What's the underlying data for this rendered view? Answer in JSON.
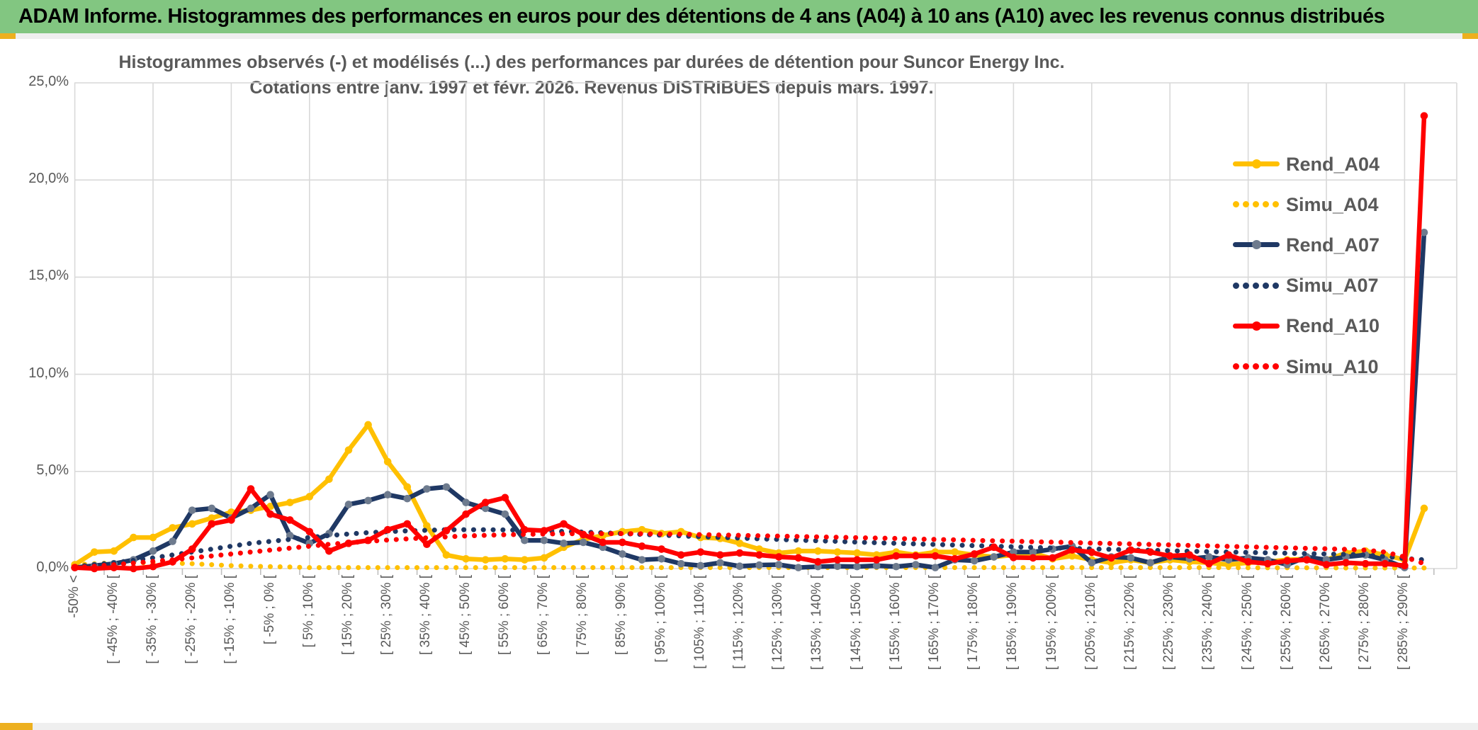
{
  "header": {
    "title": "ADAM Informe. Histogrammes des performances en euros pour des détentions de 4 ans (A04) à 10 ans (A10) avec les revenus connus distribués",
    "bg_color": "#82C681",
    "accent_color": "#EDB01F",
    "text_color": "#000000"
  },
  "chart_data": {
    "type": "line",
    "title": "Histogrammes observés (-) et modélisés (...) des performances par durées de détention pour Suncor Energy Inc.",
    "subtitle": "Cotations entre janv. 1997 et févr. 2026. Revenus DISTRIBUES depuis mars. 1997.",
    "grid": true,
    "legend_position": "right-inside",
    "text_color": "#595959",
    "gridline_color": "#D9D9D9",
    "y_axis": {
      "unit": "percent",
      "min": 0,
      "max": 25,
      "tick_step": 5,
      "ticks": [
        "0,0%",
        "5,0%",
        "10,0%",
        "15,0%",
        "20,0%",
        "25,0%"
      ]
    },
    "x_axis": {
      "bin_count": 70,
      "bin_width_pct": 5,
      "note_labels_every_2nd_bin": true,
      "labels": [
        "-50% <",
        "[ -45% ; -40% [",
        "[ -35% ; -30% [",
        "[ -25% ; -20% [",
        "[ -15% ; -10% [",
        "[ -5% ; 0% [",
        "[ 5% ; 10% [",
        "[ 15% ; 20% [",
        "[ 25% ; 30% [",
        "[ 35% ; 40% [",
        "[ 45% ; 50% [",
        "[ 55% ; 60% [",
        "[ 65% ; 70% [",
        "[ 75% ; 80% [",
        "[ 85% ; 90% [",
        "[ 95% ; 100% [",
        "[ 105% ; 110% [",
        "[ 115% ; 120% [",
        "[ 125% ; 130% [",
        "[ 135% ; 140% [",
        "[ 145% ; 150% [",
        "[ 155% ; 160% [",
        "[ 165% ; 170% [",
        "[ 175% ; 180% [",
        "[ 185% ; 190% [",
        "[ 195% ; 200% [",
        "[ 205% ; 210% [",
        "[ 215% ; 220% [",
        "[ 225% ; 230% [",
        "[ 235% ; 240% [",
        "[ 245% ; 250% [",
        "[ 255% ; 260% [",
        "[ 265% ; 270% [",
        "[ 275% ; 280% [",
        "[ 285% ; 290% ["
      ]
    },
    "series": [
      {
        "name": "Rend_A04",
        "style": "solid",
        "color": "#FFC000",
        "marker": "#FFC000",
        "values": [
          0.2,
          0.85,
          0.9,
          1.6,
          1.6,
          2.1,
          2.3,
          2.6,
          2.9,
          3.0,
          3.2,
          3.4,
          3.7,
          4.6,
          6.1,
          7.4,
          5.5,
          4.2,
          2.2,
          0.7,
          0.5,
          0.45,
          0.5,
          0.45,
          0.55,
          1.1,
          1.5,
          1.7,
          1.9,
          2.0,
          1.8,
          1.9,
          1.6,
          1.55,
          1.3,
          1.0,
          0.8,
          0.9,
          0.9,
          0.85,
          0.8,
          0.7,
          0.85,
          0.7,
          0.85,
          0.85,
          0.7,
          0.6,
          0.7,
          0.8,
          0.5,
          0.65,
          0.45,
          0.3,
          0.45,
          0.3,
          0.45,
          0.35,
          0.3,
          0.2,
          0.3,
          0.35,
          0.45,
          0.5,
          0.45,
          0.8,
          0.9,
          0.7,
          0.45,
          3.1
        ]
      },
      {
        "name": "Simu_A04",
        "style": "dotted",
        "color": "#FFC000",
        "values": [
          0.2,
          0.25,
          0.3,
          0.3,
          0.3,
          0.28,
          0.25,
          0.2,
          0.15,
          0.12,
          0.1,
          0.08,
          0.05,
          0.05,
          0.05,
          0.05,
          0.05,
          0.05,
          0.05,
          0.05,
          0.05,
          0.05,
          0.05,
          0.05,
          0.05,
          0.05,
          0.05,
          0.05,
          0.05,
          0.05,
          0.05,
          0.05,
          0.05,
          0.05,
          0.05,
          0.05,
          0.05,
          0.05,
          0.05,
          0.05,
          0.05,
          0.05,
          0.05,
          0.05,
          0.05,
          0.05,
          0.05,
          0.05,
          0.05,
          0.05,
          0.05,
          0.05,
          0.05,
          0.05,
          0.05,
          0.05,
          0.05,
          0.05,
          0.05,
          0.05,
          0.04,
          0.04,
          0.04,
          0.04,
          0.04,
          0.03,
          0.03,
          0.03,
          0.03,
          0.03
        ]
      },
      {
        "name": "Rend_A07",
        "style": "solid",
        "color": "#1F3864",
        "marker": "#6E7B8E",
        "values": [
          0.05,
          0.15,
          0.25,
          0.45,
          0.9,
          1.4,
          3.0,
          3.1,
          2.6,
          3.1,
          3.8,
          1.7,
          1.3,
          1.8,
          3.3,
          3.5,
          3.8,
          3.6,
          4.1,
          4.2,
          3.4,
          3.1,
          2.8,
          1.45,
          1.45,
          1.3,
          1.35,
          1.1,
          0.75,
          0.45,
          0.5,
          0.25,
          0.15,
          0.3,
          0.12,
          0.18,
          0.2,
          0.05,
          0.1,
          0.12,
          0.1,
          0.15,
          0.1,
          0.2,
          0.05,
          0.45,
          0.4,
          0.6,
          0.85,
          0.85,
          1.0,
          1.15,
          0.3,
          0.6,
          0.55,
          0.3,
          0.6,
          0.5,
          0.6,
          0.45,
          0.55,
          0.45,
          0.2,
          0.6,
          0.45,
          0.6,
          0.7,
          0.45,
          0.05,
          17.3
        ]
      },
      {
        "name": "Simu_A07",
        "style": "dotted",
        "color": "#1F3864",
        "values": [
          0.1,
          0.2,
          0.3,
          0.42,
          0.55,
          0.7,
          0.85,
          1.0,
          1.15,
          1.3,
          1.4,
          1.5,
          1.6,
          1.7,
          1.78,
          1.85,
          1.9,
          1.94,
          1.97,
          2.0,
          2.0,
          2.0,
          1.99,
          1.97,
          1.94,
          1.91,
          1.88,
          1.84,
          1.8,
          1.76,
          1.72,
          1.68,
          1.64,
          1.6,
          1.57,
          1.53,
          1.5,
          1.46,
          1.43,
          1.4,
          1.36,
          1.33,
          1.3,
          1.27,
          1.24,
          1.21,
          1.18,
          1.15,
          1.12,
          1.09,
          1.06,
          1.04,
          1.01,
          0.99,
          0.96,
          0.94,
          0.92,
          0.89,
          0.87,
          0.85,
          0.83,
          0.81,
          0.79,
          0.77,
          0.75,
          0.73,
          0.7,
          0.62,
          0.52,
          0.45
        ]
      },
      {
        "name": "Rend_A10",
        "style": "solid",
        "color": "#FF0000",
        "marker": "#FF0000",
        "values": [
          0.05,
          0.0,
          0.05,
          0.0,
          0.1,
          0.35,
          1.0,
          2.3,
          2.5,
          4.1,
          2.8,
          2.5,
          1.9,
          0.9,
          1.3,
          1.45,
          2.0,
          2.3,
          1.25,
          1.95,
          2.8,
          3.4,
          3.65,
          2.0,
          1.95,
          2.3,
          1.75,
          1.35,
          1.35,
          1.15,
          1.0,
          0.7,
          0.85,
          0.7,
          0.8,
          0.7,
          0.6,
          0.55,
          0.35,
          0.45,
          0.45,
          0.45,
          0.65,
          0.65,
          0.65,
          0.5,
          0.75,
          1.1,
          0.57,
          0.55,
          0.55,
          0.96,
          0.84,
          0.55,
          0.95,
          0.85,
          0.65,
          0.7,
          0.25,
          0.7,
          0.35,
          0.25,
          0.4,
          0.45,
          0.2,
          0.3,
          0.25,
          0.25,
          0.15,
          23.3
        ]
      },
      {
        "name": "Simu_A10",
        "style": "dotted",
        "color": "#FF0000",
        "values": [
          0.05,
          0.12,
          0.2,
          0.28,
          0.37,
          0.45,
          0.55,
          0.65,
          0.75,
          0.85,
          0.95,
          1.05,
          1.15,
          1.25,
          1.33,
          1.4,
          1.47,
          1.53,
          1.58,
          1.63,
          1.68,
          1.71,
          1.74,
          1.76,
          1.78,
          1.79,
          1.8,
          1.8,
          1.8,
          1.79,
          1.78,
          1.77,
          1.75,
          1.73,
          1.71,
          1.69,
          1.67,
          1.65,
          1.63,
          1.61,
          1.59,
          1.57,
          1.55,
          1.52,
          1.5,
          1.48,
          1.45,
          1.43,
          1.41,
          1.38,
          1.36,
          1.34,
          1.31,
          1.29,
          1.27,
          1.24,
          1.22,
          1.19,
          1.17,
          1.14,
          1.12,
          1.09,
          1.07,
          1.04,
          1.02,
          0.99,
          0.95,
          0.85,
          0.6,
          0.25
        ]
      }
    ]
  }
}
